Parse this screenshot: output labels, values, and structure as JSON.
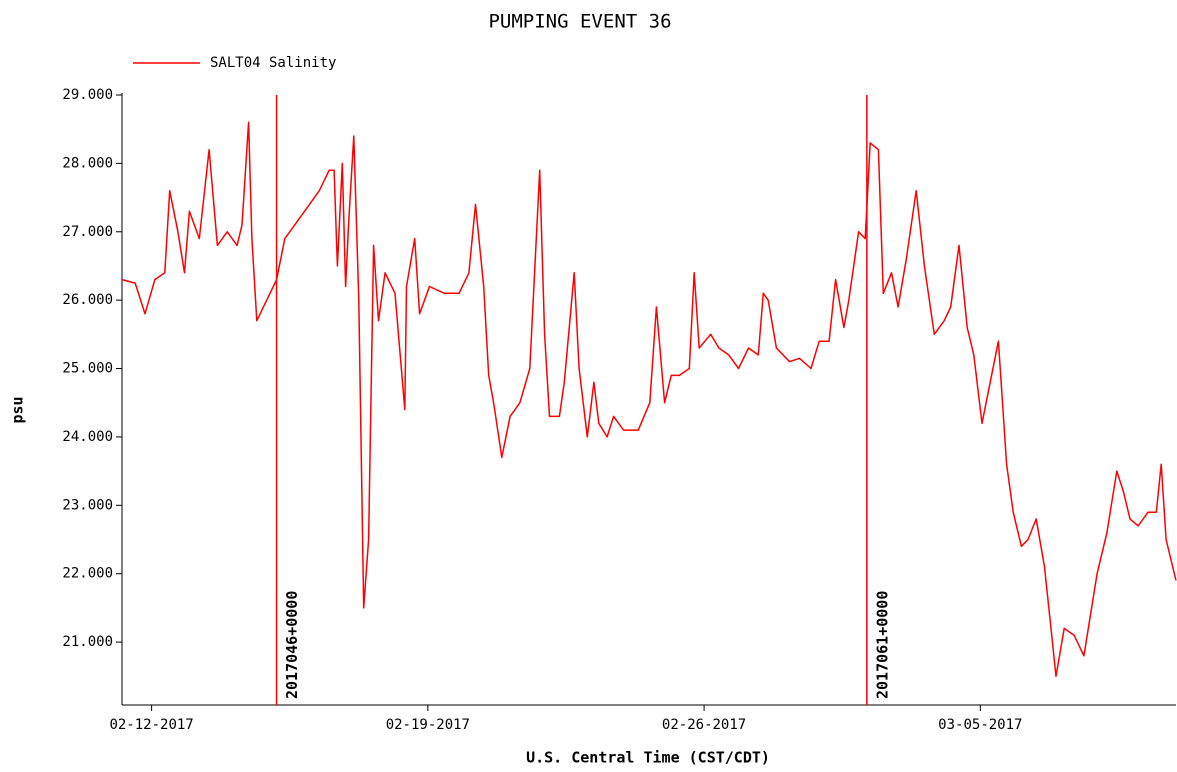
{
  "chart_data": {
    "type": "line",
    "title": "PUMPING EVENT 36",
    "xlabel": "U.S. Central Time (CST/CDT)",
    "ylabel": "psu",
    "legend": "top-left",
    "xlim": [
      "2017-02-11T06:00",
      "2017-03-09T23:00"
    ],
    "xticks": [
      {
        "value": "2017-02-12T00:00",
        "label": "02-12-2017"
      },
      {
        "value": "2017-02-19T00:00",
        "label": "02-19-2017"
      },
      {
        "value": "2017-02-26T00:00",
        "label": "02-26-2017"
      },
      {
        "value": "2017-03-05T00:00",
        "label": "03-05-2017"
      }
    ],
    "ylim": [
      20.08,
      29
    ],
    "yticks": [
      {
        "value": 21,
        "label": "21.000"
      },
      {
        "value": 22,
        "label": "22.000"
      },
      {
        "value": 23,
        "label": "23.000"
      },
      {
        "value": 24,
        "label": "24.000"
      },
      {
        "value": 25,
        "label": "25.000"
      },
      {
        "value": 26,
        "label": "26.000"
      },
      {
        "value": 27,
        "label": "27.000"
      },
      {
        "value": 28,
        "label": "28.000"
      },
      {
        "value": 29,
        "label": "29.000"
      }
    ],
    "events": [
      {
        "x": "2017-02-15T04:00",
        "label": "2017046+0000"
      },
      {
        "x": "2017-03-02T03:00",
        "label": "2017061+0000"
      }
    ],
    "x": [
      "2017-02-11T06:00",
      "2017-02-11T14:00",
      "2017-02-11T20:00",
      "2017-02-12T02:00",
      "2017-02-12T08:00",
      "2017-02-12T11:00",
      "2017-02-12T16:00",
      "2017-02-12T20:00",
      "2017-02-12T23:00",
      "2017-02-13T05:00",
      "2017-02-13T11:00",
      "2017-02-13T16:00",
      "2017-02-13T22:00",
      "2017-02-14T04:00",
      "2017-02-14T07:00",
      "2017-02-14T11:00",
      "2017-02-14T13:00",
      "2017-02-14T16:00",
      "2017-02-14T22:00",
      "2017-02-15T04:00",
      "2017-02-15T09:00",
      "2017-02-15T15:00",
      "2017-02-16T00:00",
      "2017-02-16T06:00",
      "2017-02-16T12:00",
      "2017-02-16T15:00",
      "2017-02-16T17:00",
      "2017-02-16T20:00",
      "2017-02-16T22:00",
      "2017-02-17T00:00",
      "2017-02-17T03:00",
      "2017-02-17T06:00",
      "2017-02-17T09:00",
      "2017-02-17T12:00",
      "2017-02-17T15:00",
      "2017-02-17T18:00",
      "2017-02-17T22:00",
      "2017-02-18T04:00",
      "2017-02-18T10:00",
      "2017-02-18T11:00",
      "2017-02-18T16:00",
      "2017-02-18T19:00",
      "2017-02-19T01:00",
      "2017-02-19T10:00",
      "2017-02-19T19:00",
      "2017-02-20T01:00",
      "2017-02-20T05:00",
      "2017-02-20T10:00",
      "2017-02-20T13:00",
      "2017-02-20T16:00",
      "2017-02-20T21:00",
      "2017-02-21T02:00",
      "2017-02-21T08:00",
      "2017-02-21T14:00",
      "2017-02-21T20:00",
      "2017-02-21T23:00",
      "2017-02-22T02:00",
      "2017-02-22T08:00",
      "2017-02-22T11:00",
      "2017-02-22T17:00",
      "2017-02-22T20:00",
      "2017-02-23T01:00",
      "2017-02-23T05:00",
      "2017-02-23T08:00",
      "2017-02-23T13:00",
      "2017-02-23T17:00",
      "2017-02-23T23:00",
      "2017-02-24T08:00",
      "2017-02-24T15:00",
      "2017-02-24T19:00",
      "2017-02-25T00:00",
      "2017-02-25T04:00",
      "2017-02-25T09:00",
      "2017-02-25T15:00",
      "2017-02-25T18:00",
      "2017-02-25T21:00",
      "2017-02-26T04:00",
      "2017-02-26T09:00",
      "2017-02-26T15:00",
      "2017-02-26T21:00",
      "2017-02-27T03:00",
      "2017-02-27T09:00",
      "2017-02-27T12:00",
      "2017-02-27T15:00",
      "2017-02-27T20:00",
      "2017-02-28T04:00",
      "2017-02-28T10:00",
      "2017-02-28T17:00",
      "2017-02-28T22:00",
      "2017-03-01T04:00",
      "2017-03-01T08:00",
      "2017-03-01T13:00",
      "2017-03-01T16:00",
      "2017-03-01T22:00",
      "2017-03-02T02:00",
      "2017-03-02T05:00",
      "2017-03-02T10:00",
      "2017-03-02T13:00",
      "2017-03-02T18:00",
      "2017-03-02T22:00",
      "2017-03-03T03:00",
      "2017-03-03T09:00",
      "2017-03-03T14:00",
      "2017-03-03T20:00",
      "2017-03-04T02:00",
      "2017-03-04T06:00",
      "2017-03-04T11:00",
      "2017-03-04T16:00",
      "2017-03-04T20:00",
      "2017-03-05T01:00",
      "2017-03-05T06:00",
      "2017-03-05T11:00",
      "2017-03-05T16:00",
      "2017-03-05T20:00",
      "2017-03-06T01:00",
      "2017-03-06T05:00",
      "2017-03-06T10:00",
      "2017-03-06T15:00",
      "2017-03-06T19:00",
      "2017-03-06T22:00",
      "2017-03-07T03:00",
      "2017-03-07T09:00",
      "2017-03-07T15:00",
      "2017-03-07T19:00",
      "2017-03-07T23:00",
      "2017-03-08T05:00",
      "2017-03-08T11:00",
      "2017-03-08T15:00",
      "2017-03-08T19:00",
      "2017-03-09T00:00",
      "2017-03-09T06:00",
      "2017-03-09T11:00",
      "2017-03-09T14:00",
      "2017-03-09T17:00",
      "2017-03-09T23:00"
    ],
    "series": [
      {
        "name": "SALT04 Salinity",
        "color": "#ff0000",
        "values": [
          26.3,
          26.25,
          25.8,
          26.3,
          26.4,
          27.6,
          27.0,
          26.4,
          27.3,
          26.9,
          28.2,
          26.8,
          27.0,
          26.8,
          27.1,
          28.6,
          26.9,
          25.7,
          26.0,
          26.3,
          26.9,
          27.1,
          27.4,
          27.6,
          27.9,
          27.9,
          26.5,
          28.0,
          26.2,
          27.2,
          28.4,
          26.0,
          21.5,
          22.5,
          26.8,
          25.7,
          26.4,
          26.1,
          24.4,
          26.2,
          26.9,
          25.8,
          26.2,
          26.1,
          26.1,
          26.4,
          27.4,
          26.2,
          24.9,
          24.5,
          23.7,
          24.3,
          24.5,
          25.0,
          27.9,
          25.5,
          24.3,
          24.3,
          24.8,
          26.4,
          25.0,
          24.0,
          24.8,
          24.2,
          24.0,
          24.3,
          24.1,
          24.1,
          24.5,
          25.9,
          24.5,
          24.9,
          24.9,
          25.0,
          26.4,
          25.3,
          25.5,
          25.3,
          25.2,
          25.0,
          25.3,
          25.2,
          26.1,
          26.0,
          25.3,
          25.1,
          25.15,
          25.0,
          25.4,
          25.4,
          26.3,
          25.6,
          26.0,
          27.0,
          26.9,
          28.3,
          28.2,
          26.1,
          26.4,
          25.9,
          26.6,
          27.6,
          26.5,
          25.5,
          25.7,
          25.9,
          26.8,
          25.6,
          25.2,
          24.2,
          24.8,
          25.4,
          23.6,
          22.9,
          22.4,
          22.5,
          22.8,
          22.1,
          21.2,
          20.5,
          21.2,
          21.1,
          20.8,
          21.4,
          22.0,
          22.6,
          23.5,
          23.2,
          22.8,
          22.7,
          22.9,
          22.9,
          23.6,
          22.5,
          21.9
        ]
      }
    ]
  }
}
